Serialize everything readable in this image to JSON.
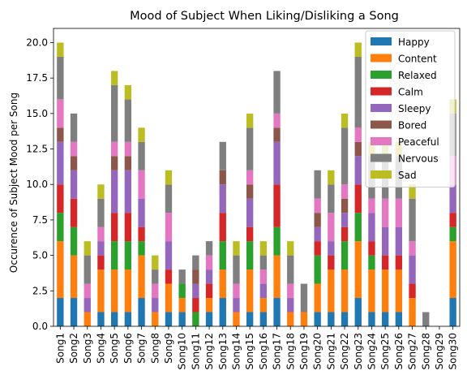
{
  "chart_data": {
    "type": "bar",
    "stacked": true,
    "title": "Mood of Subject When Liking/Disliking a Song",
    "xlabel": "",
    "ylabel": "Occurence of Subject Mood per Song",
    "ylim": [
      0,
      21
    ],
    "yticks": [
      0.0,
      2.5,
      5.0,
      7.5,
      10.0,
      12.5,
      15.0,
      17.5,
      20.0
    ],
    "ytick_labels": [
      "0.0",
      "2.5",
      "5.0",
      "7.5",
      "10.0",
      "12.5",
      "15.0",
      "17.5",
      "20.0"
    ],
    "grid": false,
    "legend_position": "top-right",
    "categories": [
      "Song1",
      "Song2",
      "Song3",
      "Song4",
      "Song5",
      "Song6",
      "Song7",
      "Song8",
      "Song9",
      "Song10",
      "Song11",
      "Song12",
      "Song13",
      "Song14",
      "Song15",
      "Song16",
      "Song17",
      "Song18",
      "Song19",
      "Song20",
      "Song21",
      "Song22",
      "Song23",
      "Song24",
      "Song25",
      "Song26",
      "Song27",
      "Song28",
      "Song29",
      "Song30"
    ],
    "series": [
      {
        "name": "Happy",
        "color": "#1f77b4",
        "values": [
          2,
          2,
          0,
          1,
          1,
          1,
          2,
          0,
          1,
          1,
          0,
          1,
          2,
          0,
          1,
          1,
          2,
          0,
          0,
          1,
          1,
          1,
          2,
          1,
          1,
          1,
          0,
          0,
          0,
          2
        ]
      },
      {
        "name": "Content",
        "color": "#ff7f0e",
        "values": [
          4,
          3,
          1,
          3,
          3,
          3,
          3,
          1,
          2,
          1,
          0,
          1,
          2,
          1,
          3,
          1,
          3,
          1,
          1,
          2,
          3,
          3,
          4,
          3,
          3,
          3,
          2,
          0,
          0,
          4
        ]
      },
      {
        "name": "Relaxed",
        "color": "#2ca02c",
        "values": [
          2,
          2,
          0,
          0,
          2,
          2,
          1,
          0,
          0,
          1,
          1,
          0,
          2,
          0,
          2,
          0,
          2,
          0,
          0,
          2,
          0,
          2,
          2,
          1,
          0,
          0,
          0,
          0,
          0,
          1
        ]
      },
      {
        "name": "Calm",
        "color": "#d62728",
        "values": [
          2,
          2,
          0,
          1,
          2,
          2,
          1,
          0,
          1,
          0,
          1,
          1,
          2,
          0,
          1,
          0,
          3,
          0,
          0,
          1,
          1,
          1,
          2,
          1,
          1,
          1,
          1,
          0,
          0,
          1
        ]
      },
      {
        "name": "Sleepy",
        "color": "#9467bd",
        "values": [
          3,
          2,
          1,
          1,
          3,
          3,
          2,
          1,
          2,
          0,
          1,
          1,
          2,
          1,
          2,
          1,
          3,
          1,
          0,
          1,
          1,
          1,
          2,
          2,
          2,
          2,
          2,
          0,
          0,
          2
        ]
      },
      {
        "name": "Bored",
        "color": "#8c564b",
        "values": [
          1,
          1,
          0,
          0,
          1,
          1,
          0,
          0,
          0,
          0,
          1,
          0,
          1,
          0,
          1,
          0,
          1,
          0,
          0,
          1,
          0,
          1,
          1,
          0,
          0,
          0,
          0,
          0,
          0,
          0
        ]
      },
      {
        "name": "Peaceful",
        "color": "#e377c2",
        "values": [
          2,
          1,
          1,
          1,
          1,
          1,
          2,
          1,
          2,
          0,
          0,
          1,
          0,
          1,
          1,
          1,
          1,
          1,
          0,
          1,
          2,
          1,
          1,
          1,
          2,
          2,
          1,
          0,
          0,
          2
        ]
      },
      {
        "name": "Nervous",
        "color": "#7f7f7f",
        "values": [
          3,
          2,
          2,
          2,
          4,
          3,
          2,
          1,
          2,
          1,
          1,
          1,
          2,
          2,
          3,
          1,
          3,
          2,
          2,
          2,
          2,
          4,
          5,
          3,
          3,
          3,
          3,
          1,
          0,
          3
        ]
      },
      {
        "name": "Sad",
        "color": "#bcbd22",
        "values": [
          1,
          0,
          1,
          1,
          1,
          1,
          1,
          1,
          1,
          0,
          0,
          0,
          0,
          1,
          1,
          1,
          0,
          1,
          0,
          0,
          1,
          1,
          1,
          1,
          1,
          1,
          1,
          0,
          0,
          1
        ]
      }
    ]
  }
}
